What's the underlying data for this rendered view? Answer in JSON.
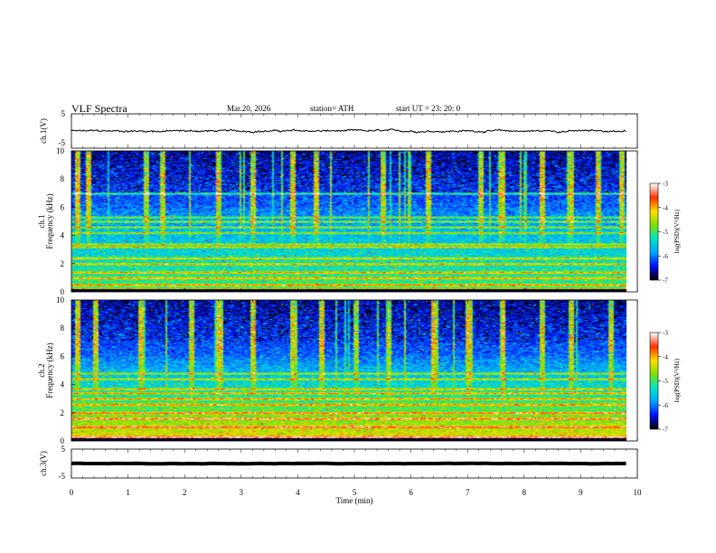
{
  "header": {
    "title": "VLF Spectra",
    "date": "Mar.20, 2026",
    "station": "station= ATH",
    "start": "start  UT  =    23: 20: 0"
  },
  "colors": {
    "cmap": [
      "#000000",
      "#0010ff",
      "#00a8ff",
      "#00e6c8",
      "#7fe000",
      "#ffe000",
      "#ff3000",
      "#ffffff"
    ]
  },
  "chart_data": [
    {
      "type": "line",
      "name": "ch.1 waveform",
      "ylabel": "ch.1(V)",
      "ylim": [
        -5,
        5
      ],
      "yticks": [
        5,
        -5
      ],
      "xlim": [
        0,
        10
      ],
      "mean_value": 0,
      "noise_amplitude": 0.6
    },
    {
      "type": "heatmap",
      "name": "ch.1 spectrogram",
      "ylabel_prefix": "ch.1",
      "ylabel": "Frequency (kHz)",
      "ylim": [
        0,
        10
      ],
      "yticks": [
        0,
        2,
        4,
        6,
        8,
        10
      ],
      "xlim": [
        0,
        9.8
      ],
      "colorbar": {
        "label": "log(PSD)(V²/Hz)",
        "range": [
          -7,
          -3
        ],
        "ticks": [
          -3,
          -4,
          -5,
          -6,
          -7
        ]
      },
      "bands_khz": [
        0.2,
        0.5,
        1.0,
        1.4,
        2.0,
        2.4,
        3.2,
        3.4,
        4.2,
        4.6,
        5.0,
        5.3,
        7.0
      ],
      "bursts_min": [
        0.1,
        0.3,
        1.3,
        1.6,
        2.6,
        3.2,
        3.9,
        4.3,
        5.5,
        6.3,
        7.2,
        7.6,
        8.3,
        8.8,
        9.3,
        9.7
      ]
    },
    {
      "type": "heatmap",
      "name": "ch.2 spectrogram",
      "ylabel_prefix": "ch.2",
      "ylabel": "Frequency (kHz)",
      "ylim": [
        0,
        10
      ],
      "yticks": [
        0,
        2,
        4,
        6,
        8,
        10
      ],
      "xlim": [
        0,
        9.8
      ],
      "colorbar": {
        "label": "log(PSD)(V²/Hz)",
        "range": [
          -7,
          -3
        ],
        "ticks": [
          -3,
          -4,
          -5,
          -6,
          -7
        ]
      },
      "bands_khz": [
        0.3,
        1.0,
        1.6,
        2.0,
        2.6,
        3.0,
        3.4,
        3.7,
        4.4,
        4.8
      ],
      "bursts_min": [
        0.1,
        0.4,
        1.2,
        2.1,
        2.6,
        3.2,
        3.9,
        4.4,
        5.0,
        5.6,
        6.4,
        7.0,
        7.6,
        8.3,
        8.8,
        9.5
      ]
    },
    {
      "type": "line",
      "name": "ch.3 waveform",
      "ylabel": "ch.3(V)",
      "ylim": [
        -5,
        5
      ],
      "yticks": [
        5,
        -5
      ],
      "xlim": [
        0,
        10
      ],
      "mean_value": 0,
      "noise_amplitude": 0.05
    }
  ],
  "xaxis": {
    "label": "Time  (min)",
    "ticks": [
      0,
      1,
      2,
      3,
      4,
      5,
      6,
      7,
      8,
      9,
      10
    ],
    "xlim": [
      0,
      10
    ]
  }
}
